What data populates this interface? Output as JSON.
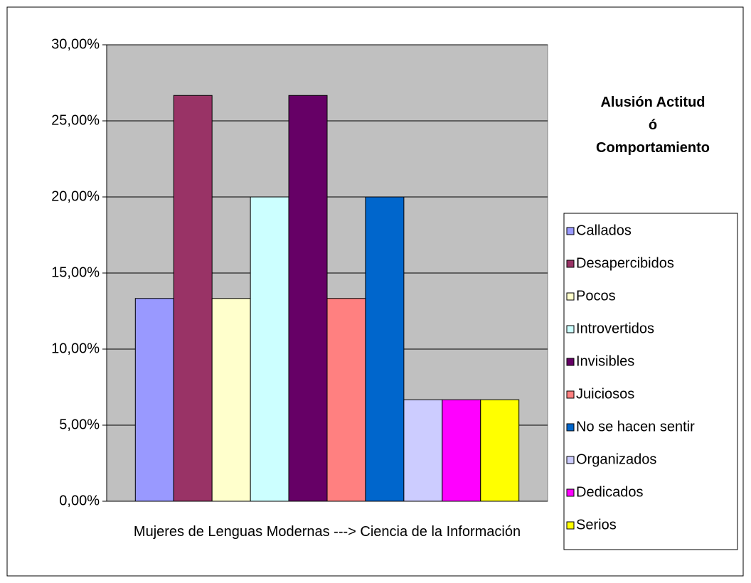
{
  "chart_data": {
    "type": "bar",
    "categories": [
      "Mujeres de Lenguas Modernas ---> Ciencia de la Información"
    ],
    "legend_title": "Alusión Actitud\nó\nComportamiento",
    "series": [
      {
        "name": "Callados",
        "color": "#9999ff",
        "values": [
          13.33
        ]
      },
      {
        "name": "Desapercibidos",
        "color": "#993366",
        "values": [
          26.67
        ]
      },
      {
        "name": "Pocos",
        "color": "#ffffcc",
        "values": [
          13.33
        ]
      },
      {
        "name": "Introvertidos",
        "color": "#ccffff",
        "values": [
          20
        ]
      },
      {
        "name": "Invisibles",
        "color": "#660066",
        "values": [
          26.67
        ]
      },
      {
        "name": "Juiciosos",
        "color": "#ff8080",
        "values": [
          13.33
        ]
      },
      {
        "name": "No se hacen sentir",
        "color": "#0066cc",
        "values": [
          20
        ]
      },
      {
        "name": "Organizados",
        "color": "#ccccff",
        "values": [
          6.67
        ]
      },
      {
        "name": "Dedicados",
        "color": "#ff00ff",
        "values": [
          6.67
        ]
      },
      {
        "name": "Serios",
        "color": "#ffff00",
        "values": [
          6.67
        ]
      }
    ],
    "ylim": [
      0,
      30
    ],
    "yticks": [
      {
        "value": 0,
        "label": "0,00%"
      },
      {
        "value": 5,
        "label": "5,00%"
      },
      {
        "value": 10,
        "label": "10,00%"
      },
      {
        "value": 15,
        "label": "15,00%"
      },
      {
        "value": 20,
        "label": "20,00%"
      },
      {
        "value": 25,
        "label": "25,00%"
      },
      {
        "value": 30,
        "label": "30,00%"
      }
    ],
    "grid": true,
    "legend": "right"
  }
}
